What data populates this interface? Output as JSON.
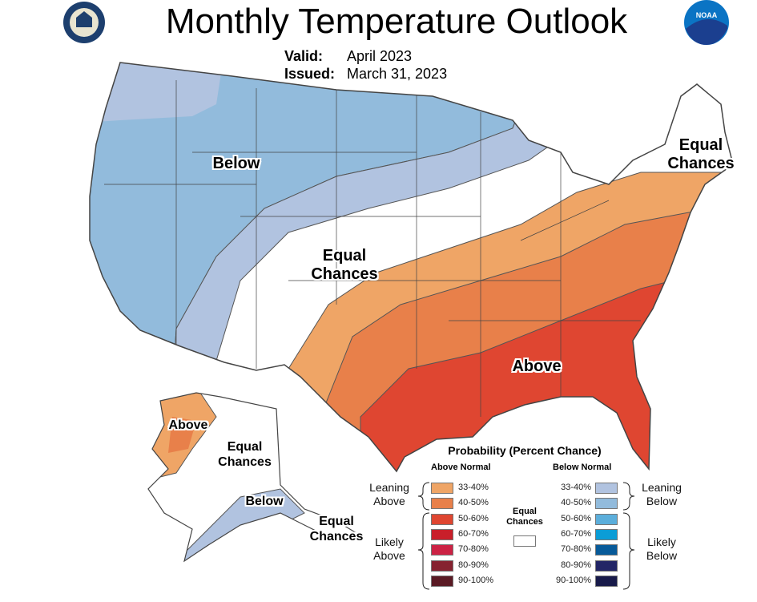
{
  "title": "Monthly Temperature Outlook",
  "valid": {
    "label": "Valid:",
    "value": "April 2023"
  },
  "issued": {
    "label": "Issued:",
    "value": "March 31, 2023"
  },
  "logos": {
    "left": "US Department of Commerce seal",
    "right": "NOAA"
  },
  "map_labels": {
    "below": "Below",
    "equal_central": "Equal Chances",
    "equal_ne": "Equal Chances",
    "above": "Above",
    "ak_above": "Above",
    "ak_equal": "Equal Chances",
    "ak_below": "Below",
    "ak_equal_se": "Equal Chances"
  },
  "legend": {
    "title": "Probability (Percent Chance)",
    "above_header": "Above Normal",
    "below_header": "Below Normal",
    "equal_label": "Equal Chances",
    "leaning_above": "Leaning Above",
    "likely_above": "Likely Above",
    "leaning_below": "Leaning Below",
    "likely_below": "Likely Below",
    "above": [
      {
        "range": "33-40%",
        "color": "#EFA566"
      },
      {
        "range": "40-50%",
        "color": "#E8804A"
      },
      {
        "range": "50-60%",
        "color": "#DF4631"
      },
      {
        "range": "60-70%",
        "color": "#C91F2A"
      },
      {
        "range": "70-80%",
        "color": "#CC2244"
      },
      {
        "range": "80-90%",
        "color": "#862230"
      },
      {
        "range": "90-100%",
        "color": "#5A1A24"
      }
    ],
    "below": [
      {
        "range": "33-40%",
        "color": "#B1C3E0"
      },
      {
        "range": "40-50%",
        "color": "#92BBDC"
      },
      {
        "range": "50-60%",
        "color": "#5BAEDB"
      },
      {
        "range": "60-70%",
        "color": "#0B9DD6"
      },
      {
        "range": "70-80%",
        "color": "#075A99"
      },
      {
        "range": "80-90%",
        "color": "#222566"
      },
      {
        "range": "90-100%",
        "color": "#181A4A"
      }
    ]
  }
}
